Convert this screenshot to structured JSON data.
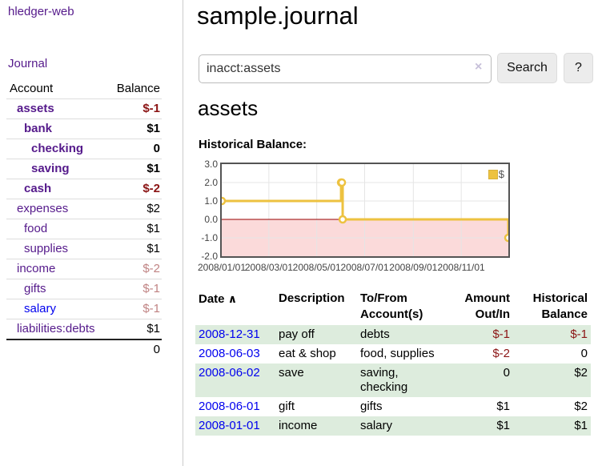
{
  "sidebar": {
    "app_title": "hledger-web",
    "journal_link": "Journal",
    "table": {
      "account_header": "Account",
      "balance_header": "Balance",
      "rows": [
        {
          "name": "assets",
          "depth": 1,
          "bold": true,
          "balance": "$-1",
          "neg": "strong",
          "link_color": "purple"
        },
        {
          "name": "bank",
          "depth": 2,
          "bold": true,
          "balance": "$1",
          "neg": "none",
          "link_color": "purple"
        },
        {
          "name": "checking",
          "depth": 3,
          "bold": true,
          "balance": "0",
          "neg": "none",
          "link_color": "purple"
        },
        {
          "name": "saving",
          "depth": 3,
          "bold": true,
          "balance": "$1",
          "neg": "none",
          "link_color": "purple"
        },
        {
          "name": "cash",
          "depth": 2,
          "bold": true,
          "balance": "$-2",
          "neg": "strong",
          "link_color": "purple"
        },
        {
          "name": "expenses",
          "depth": 1,
          "bold": false,
          "balance": "$2",
          "neg": "none",
          "link_color": "purple"
        },
        {
          "name": "food",
          "depth": 2,
          "bold": false,
          "balance": "$1",
          "neg": "none",
          "link_color": "purple"
        },
        {
          "name": "supplies",
          "depth": 2,
          "bold": false,
          "balance": "$1",
          "neg": "none",
          "link_color": "purple"
        },
        {
          "name": "income",
          "depth": 1,
          "bold": false,
          "balance": "$-2",
          "neg": "soft",
          "link_color": "purple"
        },
        {
          "name": "gifts",
          "depth": 2,
          "bold": false,
          "balance": "$-1",
          "neg": "soft",
          "link_color": "purple"
        },
        {
          "name": "salary",
          "depth": 2,
          "bold": false,
          "balance": "$-1",
          "neg": "soft",
          "link_color": "blue"
        },
        {
          "name": "liabilities:debts",
          "depth": 1,
          "bold": false,
          "balance": "$1",
          "neg": "none",
          "link_color": "purple"
        }
      ],
      "total": "0"
    }
  },
  "main": {
    "title": "sample.journal",
    "search": {
      "value": "inacct:assets",
      "clear_icon": "×",
      "search_button": "Search",
      "help_button": "?"
    },
    "account_heading": "assets",
    "chart_label": "Historical Balance:"
  },
  "chart_data": {
    "type": "line",
    "style": "step",
    "title": "Historical Balance",
    "legend_label": "$",
    "legend_position": "top-right",
    "grid": true,
    "xlim_days": [
      0,
      365
    ],
    "ylim": [
      -2,
      3
    ],
    "yticks": [
      {
        "v": 3,
        "label": "3.0"
      },
      {
        "v": 2,
        "label": "2.0"
      },
      {
        "v": 1,
        "label": "1.0"
      },
      {
        "v": 0,
        "label": "0.0"
      },
      {
        "v": -1,
        "label": "-1.0"
      },
      {
        "v": -2,
        "label": "-2.0"
      }
    ],
    "xticks": [
      {
        "day": 0,
        "label": "2008/01/01"
      },
      {
        "day": 60,
        "label": "2008/03/01"
      },
      {
        "day": 121,
        "label": "2008/05/01"
      },
      {
        "day": 182,
        "label": "2008/07/01"
      },
      {
        "day": 244,
        "label": "2008/09/01"
      },
      {
        "day": 305,
        "label": "2008/11/01"
      }
    ],
    "series": [
      {
        "name": "$",
        "points": [
          {
            "date": "2008-01-01",
            "day": 0,
            "value": 1
          },
          {
            "date": "2008-06-01",
            "day": 152,
            "value": 2
          },
          {
            "date": "2008-06-02",
            "day": 153,
            "value": 2
          },
          {
            "date": "2008-06-03",
            "day": 154,
            "value": 0
          },
          {
            "date": "2008-12-31",
            "day": 365,
            "value": -1
          }
        ]
      }
    ],
    "colors": {
      "line": "#edc240",
      "marker_fill": "#ffffff",
      "negative_region_fill": "#fbdada",
      "zero_line": "#990000",
      "gridline": "#e5e5e5",
      "frame": "#545454"
    }
  },
  "register": {
    "headers": {
      "date": "Date",
      "sort_icon": "∧",
      "description": "Description",
      "to_from": "To/From\nAccount(s)",
      "amount": "Amount\nOut/In",
      "balance": "Historical\nBalance"
    },
    "rows": [
      {
        "date": "2008-12-31",
        "description": "pay off",
        "to_from": "debts",
        "amount": "$-1",
        "amount_neg": true,
        "balance": "$-1",
        "balance_neg": true,
        "green": true
      },
      {
        "date": "2008-06-03",
        "description": "eat & shop",
        "to_from": "food, supplies",
        "amount": "$-2",
        "amount_neg": true,
        "balance": "0",
        "balance_neg": false,
        "green": false
      },
      {
        "date": "2008-06-02",
        "description": "save",
        "to_from": "saving,\nchecking",
        "amount": "0",
        "amount_neg": false,
        "balance": "$2",
        "balance_neg": false,
        "green": true
      },
      {
        "date": "2008-06-01",
        "description": "gift",
        "to_from": "gifts",
        "amount": "$1",
        "amount_neg": false,
        "balance": "$2",
        "balance_neg": false,
        "green": false
      },
      {
        "date": "2008-01-01",
        "description": "income",
        "to_from": "salary",
        "amount": "$1",
        "amount_neg": false,
        "balance": "$1",
        "balance_neg": false,
        "green": true
      }
    ]
  },
  "colors": {
    "link_purple": "#551A8B",
    "link_blue": "#0000EE",
    "negative_strong": "#8b1414",
    "negative_soft": "#c08383",
    "row_green": "#ddecdd",
    "divider": "#cccccc"
  }
}
